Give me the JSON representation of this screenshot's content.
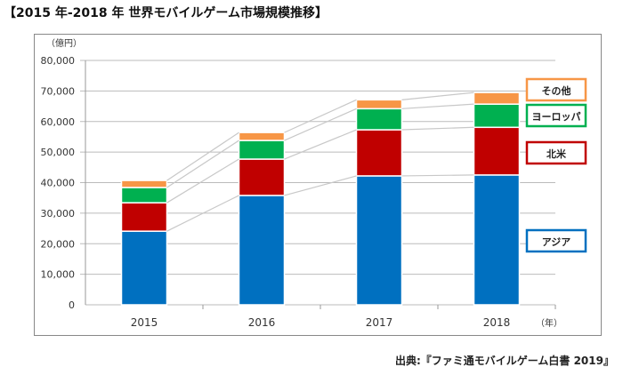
{
  "title": "【2015 年-2018 年  世界モバイルゲーム市場規模推移】",
  "source": "出典:『ファミ通モバイルゲーム白書 2019』",
  "chart_data": {
    "type": "stacked-bar",
    "title": "",
    "ylabel": "（億円）",
    "xlabel": "（年）",
    "ylim": [
      0,
      80000
    ],
    "yticks": [
      "0",
      "10,000",
      "20,000",
      "30,000",
      "40,000",
      "50,000",
      "60,000",
      "70,000",
      "80,000"
    ],
    "grid": true,
    "legend": "right",
    "categories": [
      "2015",
      "2016",
      "2017",
      "2018"
    ],
    "series": [
      {
        "name": "アジア",
        "color": "#0070c0",
        "values": [
          24100,
          35800,
          42200,
          42500
        ]
      },
      {
        "name": "北米",
        "color": "#c00000",
        "values": [
          9300,
          11900,
          15100,
          15600
        ]
      },
      {
        "name": "ヨーロッパ",
        "color": "#00b050",
        "values": [
          5000,
          6100,
          6900,
          7600
        ]
      },
      {
        "name": "その他",
        "color": "#f79646",
        "values": [
          2300,
          2600,
          2900,
          3800
        ]
      }
    ]
  }
}
